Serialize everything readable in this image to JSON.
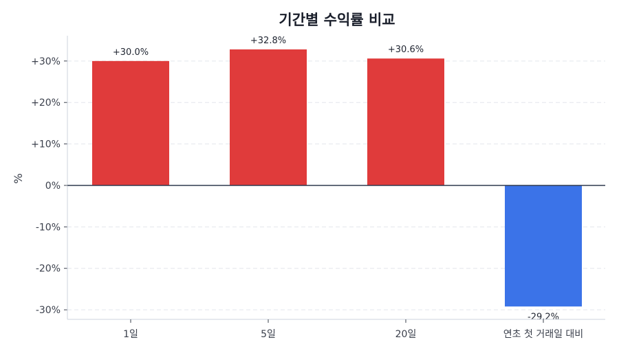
{
  "chart_data": {
    "type": "bar",
    "title": "기간별 수익률 비교",
    "xlabel": "",
    "ylabel": "%",
    "categories": [
      "1일",
      "5일",
      "20일",
      "연초 첫 거래일 대비"
    ],
    "values": [
      30.0,
      32.8,
      30.6,
      -29.2
    ],
    "data_labels": [
      "+30.0%",
      "+32.8%",
      "+30.6%",
      "-29.2%"
    ],
    "yticks": [
      -30,
      -20,
      -10,
      0,
      10,
      20,
      30
    ],
    "ytick_labels": [
      "-30%",
      "-20%",
      "-10%",
      "0%",
      "+10%",
      "+20%",
      "+30%"
    ],
    "ylim": [
      -32.3,
      36.1
    ],
    "grid": true,
    "colors": {
      "positive": "#e03b3b",
      "negative": "#3b73e8",
      "zero_line": "#2f3a4f",
      "grid": "#e3e6ec"
    }
  }
}
